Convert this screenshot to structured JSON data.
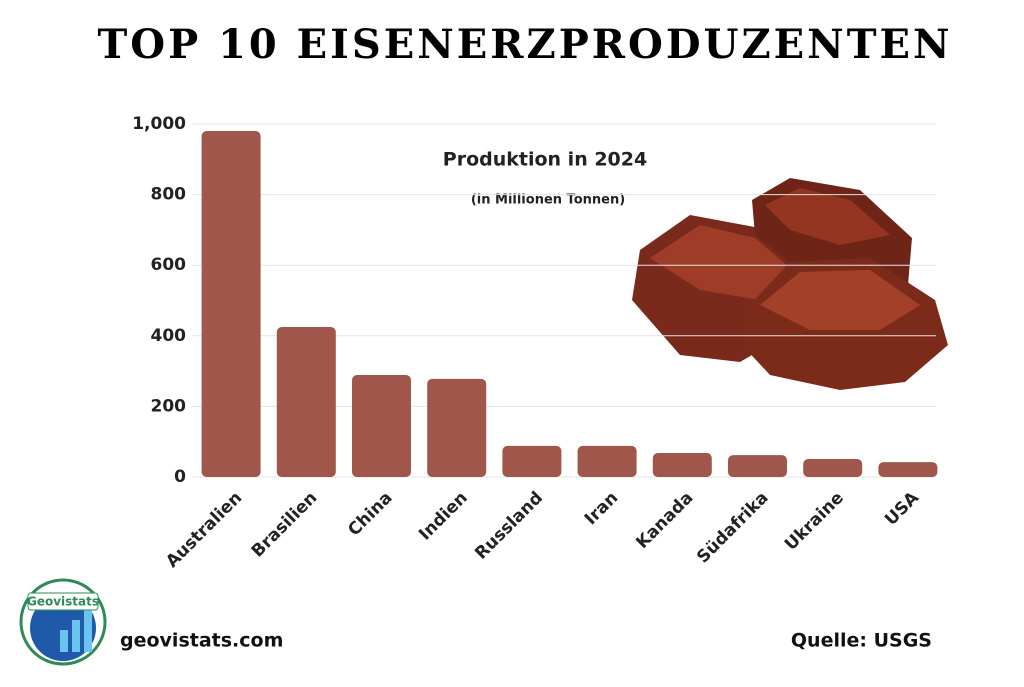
{
  "chart_data": {
    "type": "bar",
    "title": "TOP 10 EISENERZPRODUZENTEN",
    "subtitle": "Produktion in 2024",
    "unit_note": "(in Millionen Tonnen)",
    "categories": [
      "Australien",
      "Brasilien",
      "China",
      "Indien",
      "Russland",
      "Iran",
      "Kanada",
      "Südafrika",
      "Ukraine",
      "USA"
    ],
    "values": [
      980,
      425,
      289,
      278,
      88,
      88,
      68,
      62,
      51,
      42
    ],
    "color": "#a0564a",
    "ylim": [
      0,
      1000
    ],
    "yticks": [
      0,
      200,
      400,
      600,
      800,
      {
        "value": 1000,
        "label": "1,000"
      }
    ],
    "grid": true
  },
  "footer": {
    "website": "geovistats.com",
    "source": "Quelle: USGS",
    "logo_text": "Geovistats"
  }
}
